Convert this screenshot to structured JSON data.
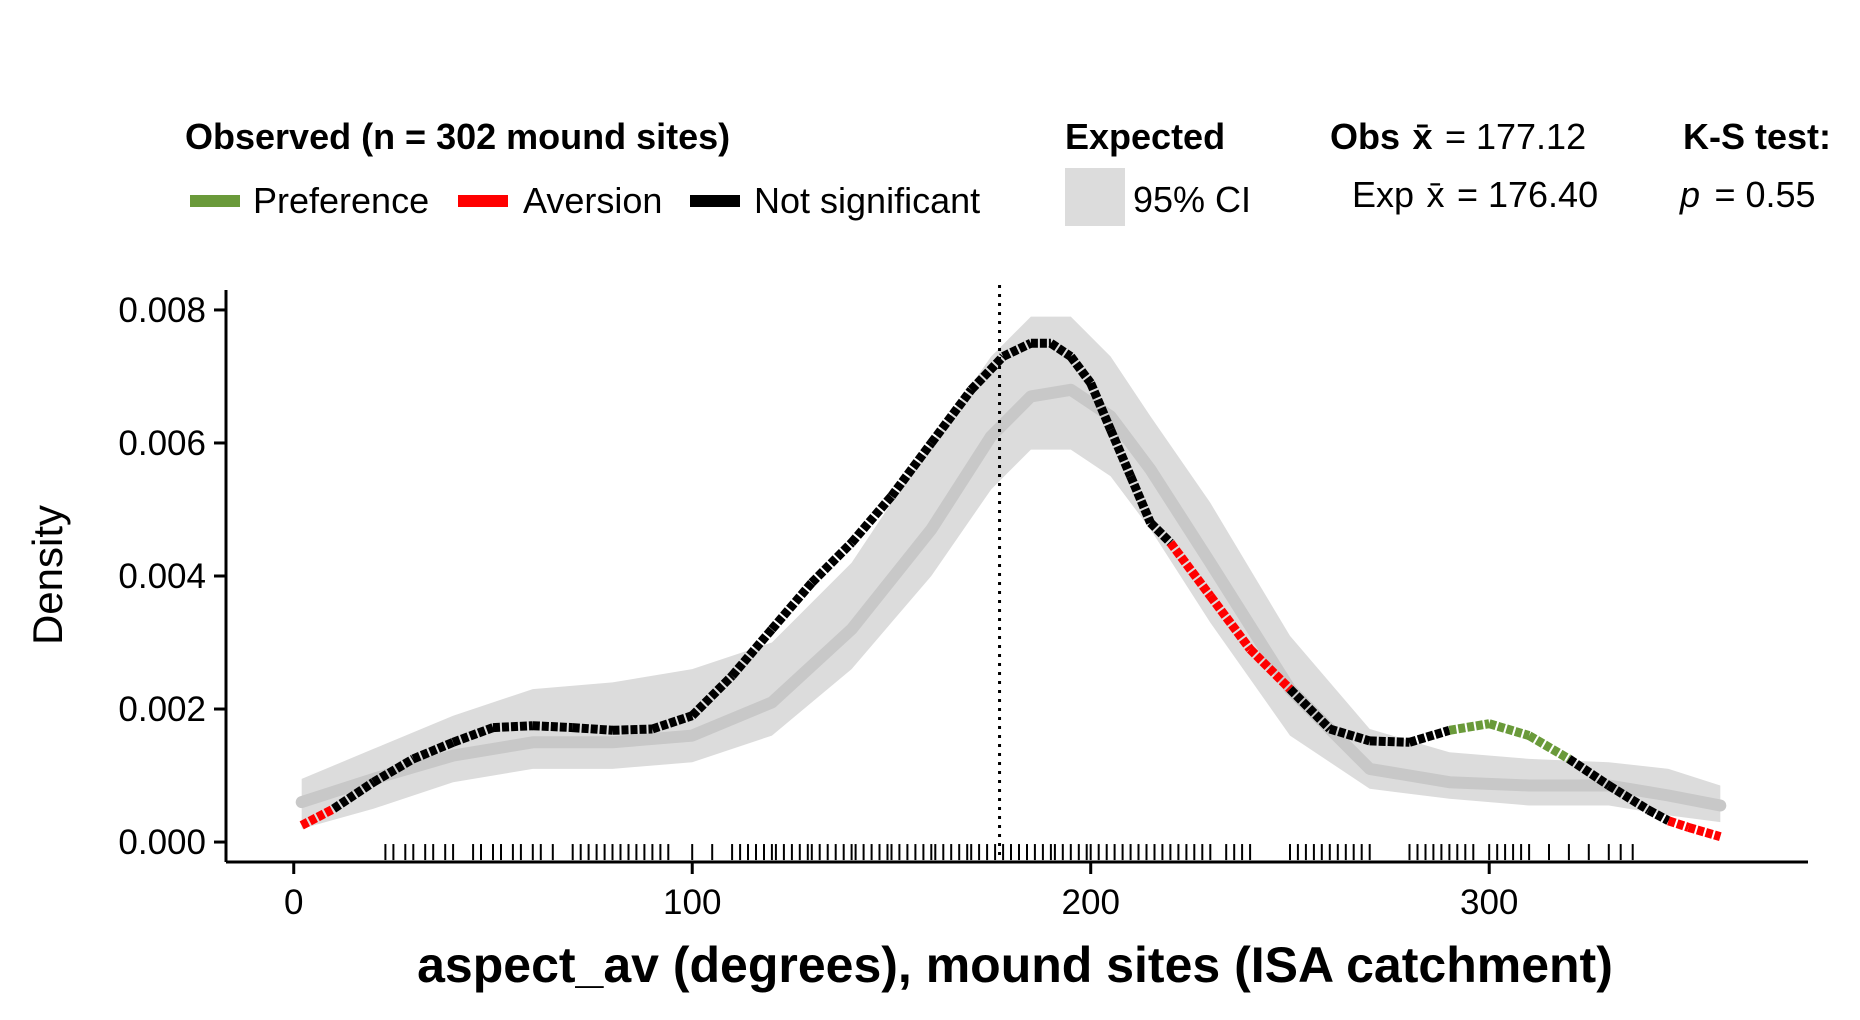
{
  "legend": {
    "observed_title": "Observed (n = 302 mound sites)",
    "items": [
      {
        "label": "Preference",
        "color": "#6a9a3a"
      },
      {
        "label": "Aversion",
        "color": "#ff0000"
      },
      {
        "label": "Not significant",
        "color": "#000000"
      }
    ],
    "expected_title": "Expected",
    "expected_item": "95% CI",
    "obs_mean_label": "Obs",
    "obs_mean_symbol": "x̄",
    "obs_mean_value": "= 177.12",
    "exp_mean_label": "Exp",
    "exp_mean_symbol": "x̄",
    "exp_mean_value": "= 176.40",
    "ks_title": "K-S test:",
    "ks_p_symbol": "p",
    "ks_p_value": "= 0.55"
  },
  "chart_data": {
    "type": "line",
    "xlabel": "aspect_av (degrees), mound sites (ISA catchment)",
    "ylabel": "Density",
    "xlim": [
      -17,
      380
    ],
    "ylim": [
      -0.0003,
      0.0083
    ],
    "x_ticks": [
      0,
      100,
      200,
      300
    ],
    "x_tick_labels": [
      "0",
      "100",
      "200",
      "300"
    ],
    "y_ticks": [
      0,
      0.002,
      0.004,
      0.006,
      0.008
    ],
    "y_tick_labels": [
      "0.000",
      "0.002",
      "0.004",
      "0.006",
      "0.008"
    ],
    "observed_mean": 177.12,
    "expected_mean": 176.4,
    "colors": {
      "preference": "#6a9a3a",
      "aversion": "#ff0000",
      "not_significant": "#000000",
      "ci_band": "#dcdcdc",
      "expected_line": "#c8c8c8"
    },
    "series": [
      {
        "name": "Observed",
        "x": [
          2,
          10,
          20,
          30,
          40,
          50,
          60,
          70,
          80,
          90,
          100,
          110,
          120,
          130,
          140,
          150,
          160,
          170,
          178,
          185,
          190,
          195,
          200,
          205,
          210,
          215,
          220,
          230,
          240,
          250,
          260,
          270,
          280,
          290,
          300,
          310,
          320,
          330,
          340,
          345,
          350,
          358
        ],
        "y": [
          0.00025,
          0.0005,
          0.0009,
          0.00125,
          0.0015,
          0.00172,
          0.00175,
          0.00172,
          0.00168,
          0.0017,
          0.0019,
          0.0025,
          0.0032,
          0.0039,
          0.0045,
          0.0052,
          0.006,
          0.0068,
          0.0073,
          0.0075,
          0.0075,
          0.0073,
          0.0069,
          0.0062,
          0.0055,
          0.0048,
          0.0045,
          0.0037,
          0.0029,
          0.0023,
          0.0017,
          0.00152,
          0.0015,
          0.00168,
          0.00178,
          0.0016,
          0.00125,
          0.00085,
          0.00048,
          0.00032,
          0.00022,
          8e-05
        ],
        "significance": [
          "aversion",
          "ns",
          "ns",
          "ns",
          "ns",
          "ns",
          "ns",
          "ns",
          "ns",
          "ns",
          "ns",
          "ns",
          "ns",
          "ns",
          "ns",
          "ns",
          "ns",
          "ns",
          "ns",
          "ns",
          "ns",
          "ns",
          "ns",
          "ns",
          "ns",
          "ns",
          "aversion",
          "aversion",
          "aversion",
          "ns",
          "ns",
          "ns",
          "ns",
          "preference",
          "preference",
          "preference",
          "ns",
          "ns",
          "ns",
          "aversion",
          "aversion",
          "aversion"
        ]
      },
      {
        "name": "Expected",
        "x": [
          2,
          20,
          40,
          60,
          80,
          100,
          120,
          140,
          160,
          175,
          185,
          195,
          205,
          215,
          230,
          250,
          270,
          290,
          310,
          330,
          345,
          358
        ],
        "y": [
          0.0006,
          0.00095,
          0.0013,
          0.0015,
          0.0015,
          0.0016,
          0.0021,
          0.0032,
          0.0047,
          0.0061,
          0.0067,
          0.0068,
          0.0064,
          0.0056,
          0.0042,
          0.0023,
          0.0011,
          0.0009,
          0.00085,
          0.00085,
          0.0007,
          0.00055
        ],
        "ci_lower": [
          0.0002,
          0.0005,
          0.0009,
          0.0011,
          0.0011,
          0.0012,
          0.0016,
          0.0026,
          0.004,
          0.0053,
          0.0059,
          0.0059,
          0.0055,
          0.0047,
          0.0033,
          0.0016,
          0.0008,
          0.00065,
          0.00055,
          0.00055,
          0.0004,
          0.0003
        ],
        "ci_upper": [
          0.00095,
          0.0014,
          0.0019,
          0.0023,
          0.0024,
          0.0026,
          0.003,
          0.0042,
          0.006,
          0.0073,
          0.0079,
          0.0079,
          0.0073,
          0.0064,
          0.0051,
          0.0031,
          0.0017,
          0.00135,
          0.00125,
          0.0012,
          0.0011,
          0.00085
        ]
      }
    ],
    "rug": [
      23,
      25,
      28,
      30,
      33,
      35,
      38,
      40,
      45,
      47,
      50,
      52,
      55,
      57,
      60,
      62,
      65,
      70,
      72,
      74,
      76,
      78,
      80,
      82,
      84,
      86,
      88,
      90,
      92,
      94,
      100,
      105,
      110,
      112,
      114,
      116,
      118,
      120,
      121,
      123,
      125,
      127,
      129,
      130,
      132,
      134,
      136,
      138,
      140,
      141,
      143,
      145,
      147,
      149,
      150,
      152,
      154,
      156,
      158,
      160,
      161,
      163,
      165,
      167,
      169,
      170,
      172,
      174,
      176,
      178,
      180,
      182,
      184,
      186,
      188,
      190,
      191,
      193,
      195,
      197,
      199,
      200,
      202,
      204,
      206,
      208,
      210,
      212,
      214,
      216,
      218,
      220,
      222,
      224,
      226,
      228,
      230,
      234,
      236,
      238,
      240,
      250,
      252,
      254,
      256,
      258,
      260,
      262,
      264,
      266,
      268,
      270,
      280,
      282,
      284,
      286,
      288,
      290,
      292,
      294,
      296,
      300,
      302,
      304,
      306,
      308,
      310,
      315,
      320,
      325,
      330,
      333,
      336
    ]
  }
}
